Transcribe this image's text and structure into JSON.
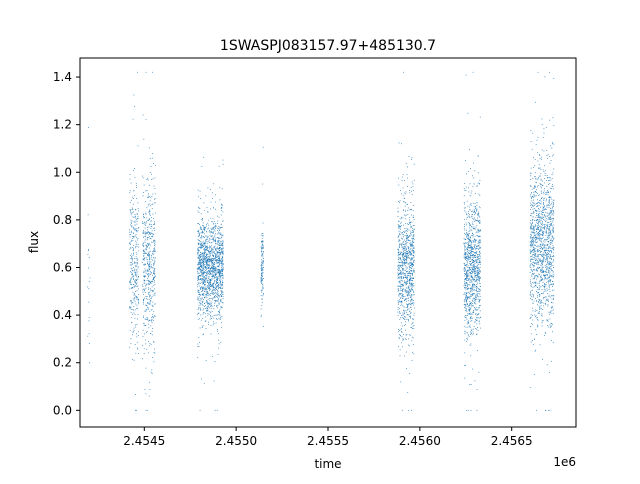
{
  "chart_data": {
    "type": "scatter",
    "title": "1SWASPJ083157.97+485130.7",
    "xlabel": "time",
    "ylabel": "flux",
    "x_offset_label": "1e6",
    "xlim": [
      2454150,
      2456850
    ],
    "ylim": [
      -0.07,
      1.48
    ],
    "x_ticks": [
      2454500,
      2455000,
      2455500,
      2456000,
      2456500
    ],
    "x_tick_labels": [
      "2.4545",
      "2.4550",
      "2.4555",
      "2.4560",
      "2.4565"
    ],
    "y_ticks": [
      0.0,
      0.2,
      0.4,
      0.6,
      0.8,
      1.0,
      1.2,
      1.4
    ],
    "y_tick_labels": [
      "0.0",
      "0.2",
      "0.4",
      "0.6",
      "0.8",
      "1.0",
      "1.2",
      "1.4"
    ],
    "grid": false,
    "marker_color": "#1f77b4",
    "observing_seasons": [
      {
        "x_start": 2454190,
        "x_end": 2454205,
        "flux_center": 0.55,
        "flux_spread": 0.22,
        "n_points": 18
      },
      {
        "x_start": 2454420,
        "x_end": 2454470,
        "flux_center": 0.6,
        "flux_spread": 0.16,
        "n_points": 320
      },
      {
        "x_start": 2454490,
        "x_end": 2454560,
        "flux_center": 0.6,
        "flux_spread": 0.18,
        "n_points": 520
      },
      {
        "x_start": 2454790,
        "x_end": 2454930,
        "flux_center": 0.6,
        "flux_spread": 0.1,
        "n_points": 1500
      },
      {
        "x_start": 2455135,
        "x_end": 2455150,
        "flux_center": 0.6,
        "flux_spread": 0.08,
        "n_points": 120
      },
      {
        "x_start": 2455880,
        "x_end": 2455970,
        "flux_center": 0.6,
        "flux_spread": 0.14,
        "n_points": 900
      },
      {
        "x_start": 2456240,
        "x_end": 2456330,
        "flux_center": 0.6,
        "flux_spread": 0.14,
        "n_points": 1000
      },
      {
        "x_start": 2456600,
        "x_end": 2456730,
        "flux_center": 0.7,
        "flux_spread": 0.16,
        "n_points": 1300
      }
    ]
  }
}
